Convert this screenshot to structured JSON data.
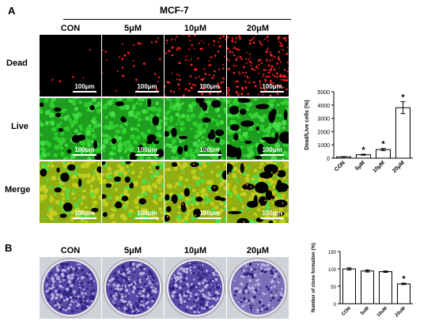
{
  "panelA": {
    "letter": "A",
    "cellLine": "MCF-7",
    "columns": [
      "CON",
      "5μM",
      "10μM",
      "20μM"
    ],
    "rows": [
      "Dead",
      "Live",
      "Merge"
    ],
    "scale": "100μm",
    "colors": {
      "dead": "#ff2020",
      "live": "#2fd12f",
      "merge": "#c8d020"
    }
  },
  "panelB": {
    "letter": "B",
    "columns": [
      "CON",
      "5μM",
      "10μM",
      "20μM"
    ]
  },
  "chart_data": [
    {
      "type": "bar",
      "categories": [
        "CON",
        "5μM",
        "10μM",
        "20μM"
      ],
      "values": [
        100,
        260,
        650,
        3800
      ],
      "errors": [
        20,
        40,
        80,
        450
      ],
      "significance": [
        "",
        "*",
        "*",
        "*"
      ],
      "ylabel": "Dead/Live cells (%)",
      "xlabel": "",
      "ylim": [
        0,
        5000
      ],
      "yticks": [
        0,
        1000,
        2000,
        3000,
        4000,
        5000
      ],
      "grid": false
    },
    {
      "type": "bar",
      "categories": [
        "CON",
        "5uM",
        "10uM",
        "20uM"
      ],
      "values": [
        100,
        94,
        92,
        57
      ],
      "errors": [
        3,
        3,
        2,
        2
      ],
      "significance": [
        "",
        "",
        "",
        "*"
      ],
      "ylabel": "Number of clone formation (%)",
      "xlabel": "",
      "ylim": [
        0,
        150
      ],
      "yticks": [
        0,
        50,
        100,
        150
      ],
      "grid": false
    }
  ]
}
